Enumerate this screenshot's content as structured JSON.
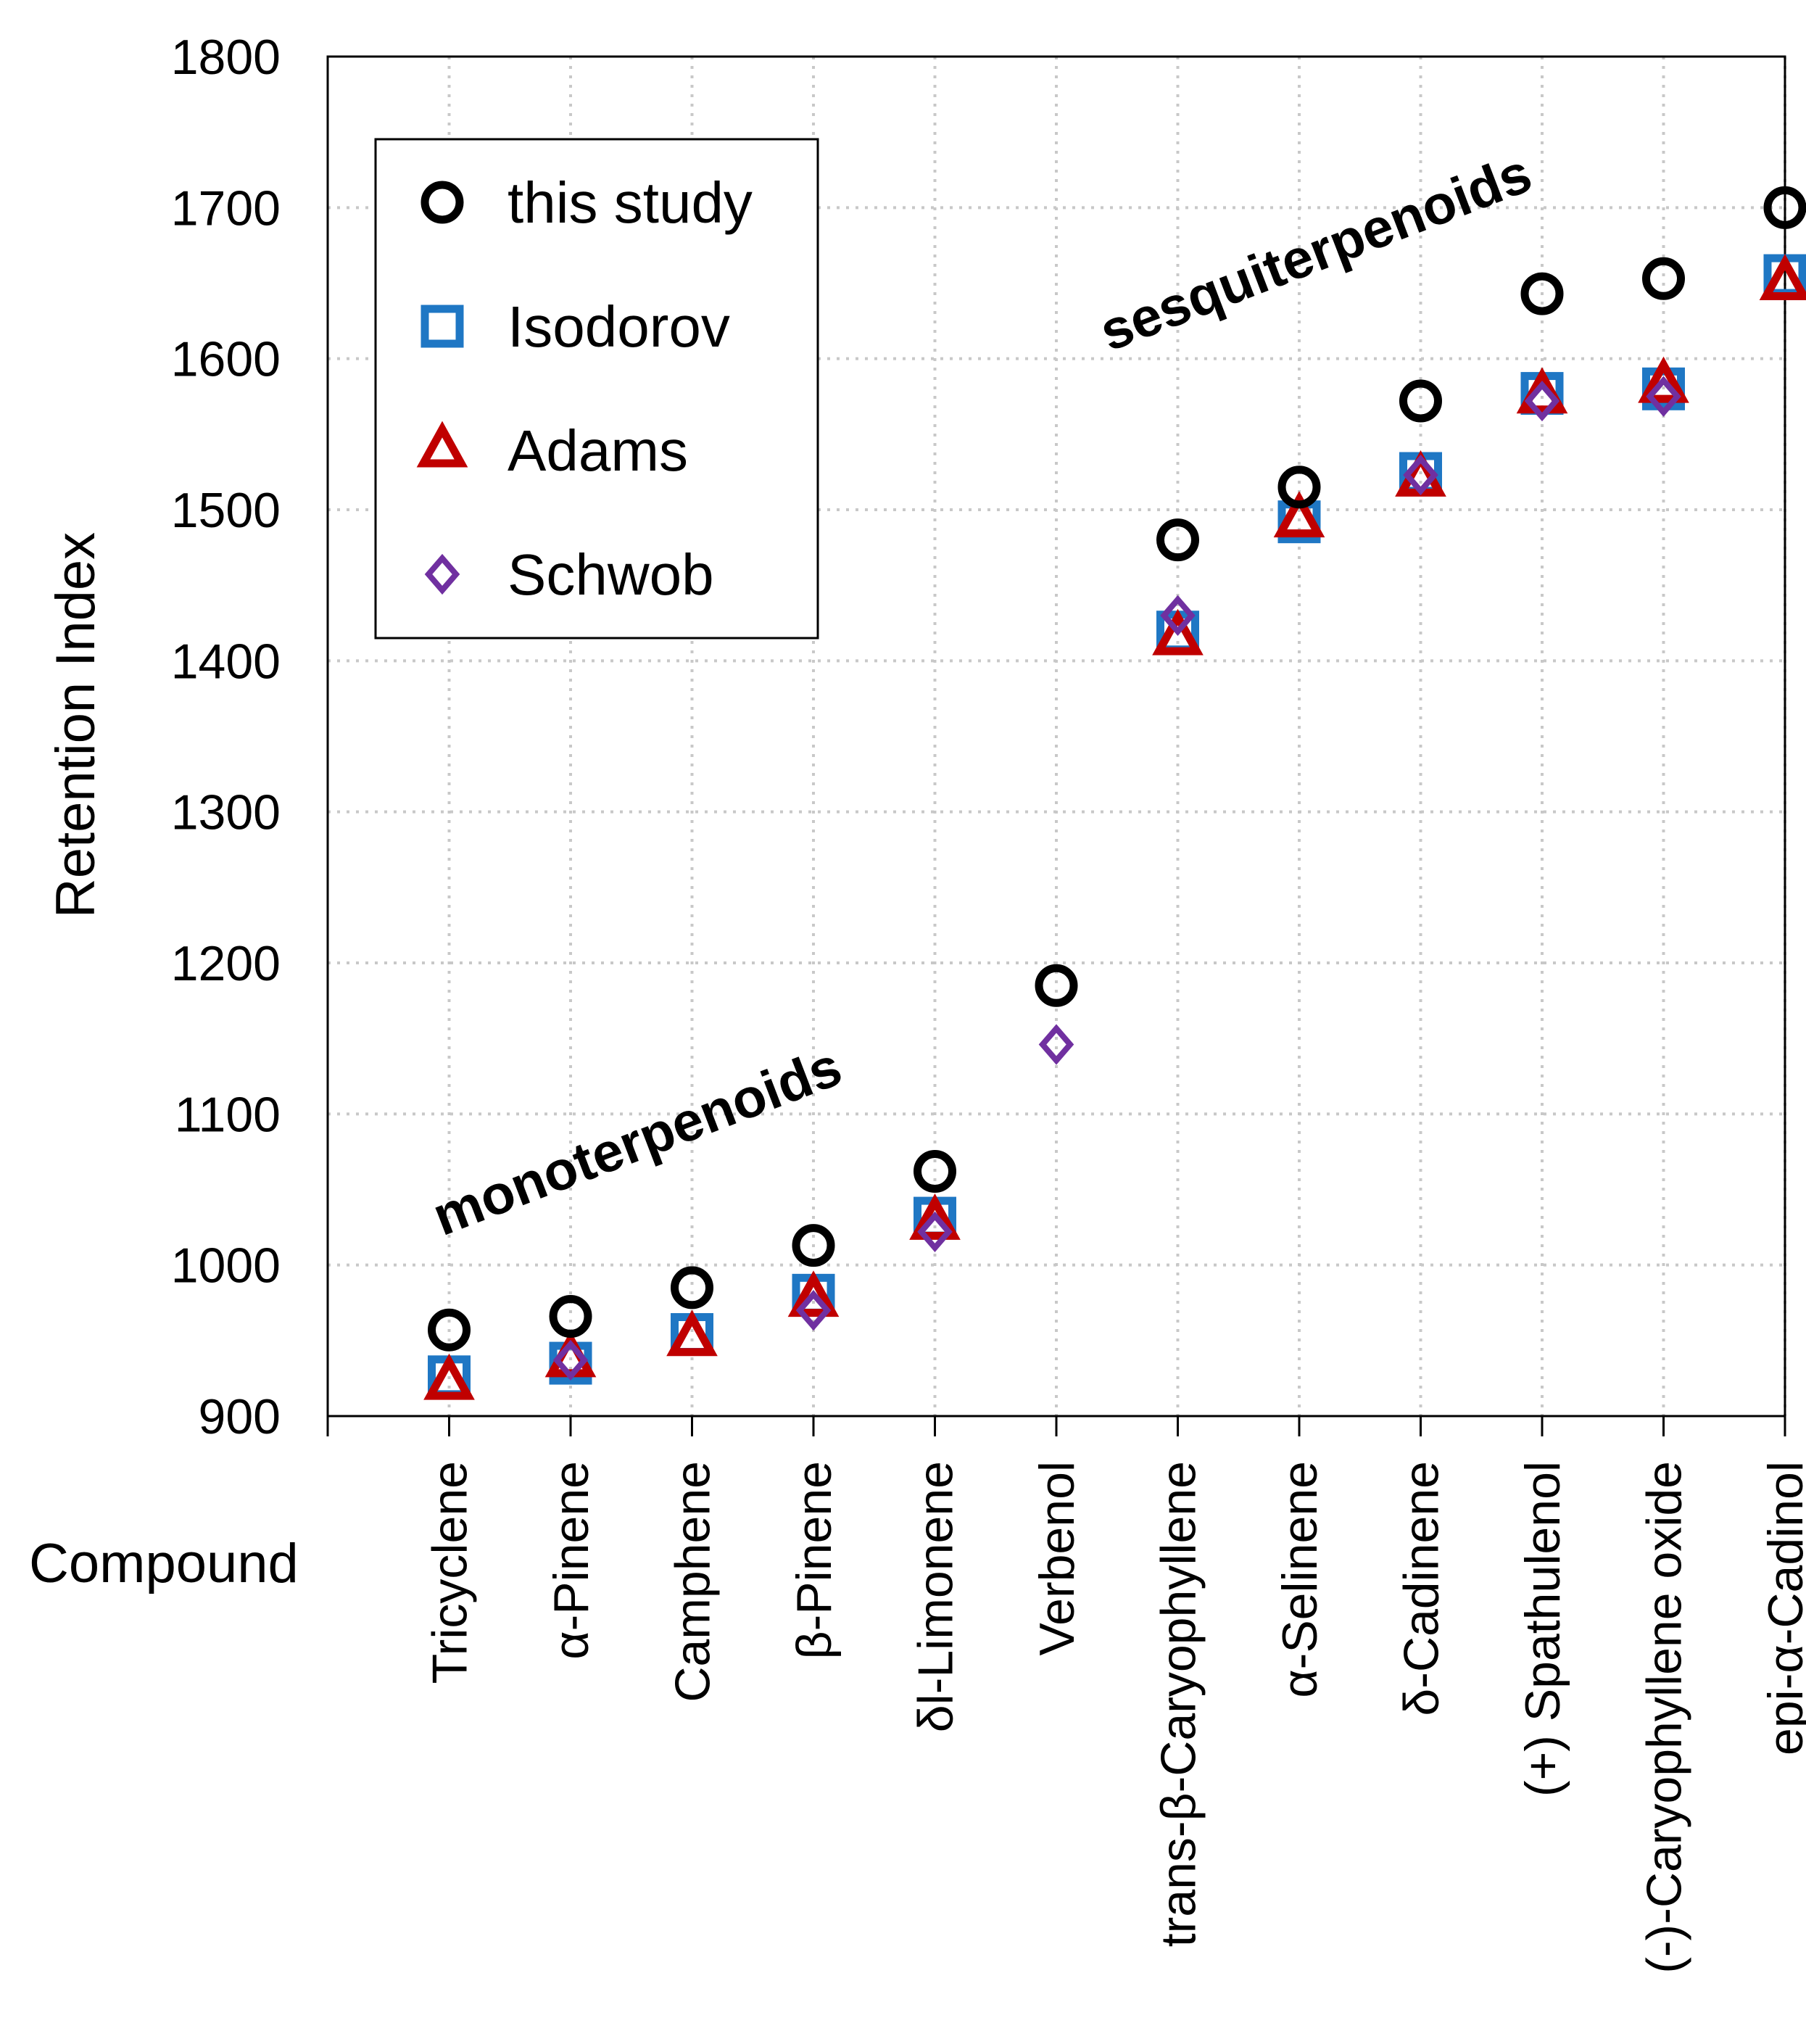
{
  "chart_data": {
    "type": "scatter",
    "title": "",
    "xlabel": "Compound",
    "ylabel": "Retention Index",
    "ylim": [
      900,
      1800
    ],
    "yticks": [
      900,
      1000,
      1100,
      1200,
      1300,
      1400,
      1500,
      1600,
      1700,
      1800
    ],
    "grid": true,
    "legend_position": "top-left",
    "categories": [
      "Tricyclene",
      "α-Pinene",
      "Camphene",
      "β-Pinene",
      "δl-Limonene",
      "Verbenol",
      "trans-β-Caryophyllene",
      "α-Selinene",
      "δ-Cadinene",
      "(+) Spathulenol",
      "(-)-Caryophyllene oxide",
      "epi-α-Cadinol"
    ],
    "series": [
      {
        "name": "this study",
        "marker": "circle",
        "color": "#000000",
        "values": [
          957,
          966,
          985,
          1013,
          1062,
          1185,
          1480,
          1515,
          1572,
          1643,
          1653,
          1700
        ]
      },
      {
        "name": "Isodorov",
        "marker": "square",
        "color": "#1f77c4",
        "values": [
          926,
          935,
          954,
          980,
          1031,
          null,
          1419,
          1492,
          1524,
          1577,
          1580,
          1655
        ]
      },
      {
        "name": "Adams",
        "marker": "triangle",
        "color": "#c00000",
        "values": [
          922,
          937,
          951,
          977,
          1028,
          null,
          1415,
          1493,
          1520,
          1575,
          1582,
          1650
        ]
      },
      {
        "name": "Schwob",
        "marker": "diamond",
        "color": "#7030a0",
        "values": [
          null,
          937,
          null,
          970,
          1022,
          1146,
          1430,
          null,
          1523,
          1572,
          1575,
          null
        ]
      }
    ],
    "annotations": [
      {
        "text": "monoterpenoids"
      },
      {
        "text": "sesquiterpenoids"
      }
    ]
  }
}
